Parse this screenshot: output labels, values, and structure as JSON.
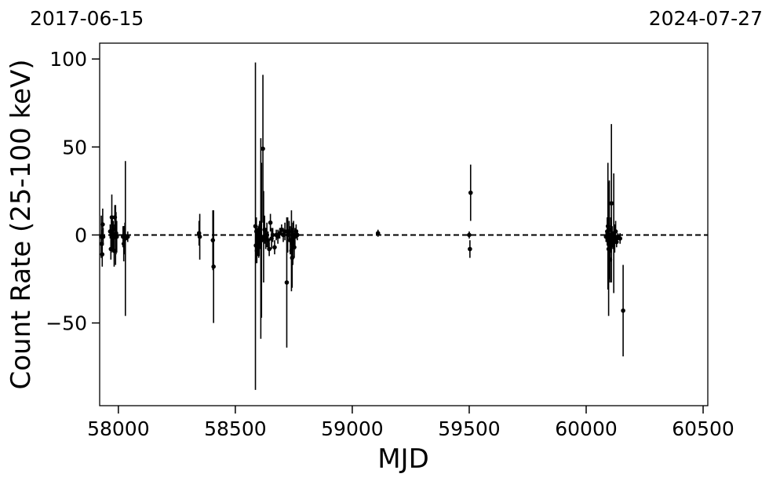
{
  "chart_data": {
    "type": "scatter",
    "title": "",
    "xlabel": "MJD",
    "ylabel": "Count Rate (25-100 keV)",
    "xlim": [
      57920,
      60520
    ],
    "ylim": [
      -97,
      109
    ],
    "x_ticks": [
      58000,
      58500,
      59000,
      59500,
      60000,
      60500
    ],
    "y_ticks": [
      -50,
      0,
      50,
      100
    ],
    "x_tick_labels": [
      "58000",
      "58500",
      "59000",
      "59500",
      "60000",
      "60500"
    ],
    "y_tick_labels": [
      "−50",
      "0",
      "50",
      "100"
    ],
    "top_dates": {
      "left": "2017-06-15",
      "right": "2024-07-27"
    },
    "reference_line": {
      "y": 0,
      "style": "dashed"
    },
    "grid": false,
    "marker_color": "#000000",
    "series": [
      {
        "points": [
          {
            "x": 57927,
            "y": -1,
            "err": 12
          },
          {
            "x": 57929,
            "y": -5,
            "err": 8
          },
          {
            "x": 57931,
            "y": -11,
            "err": 7
          },
          {
            "x": 57933,
            "y": 6,
            "err": 9
          },
          {
            "x": 57935,
            "y": -1,
            "err": 5
          },
          {
            "x": 57965,
            "y": 2,
            "err": 4
          },
          {
            "x": 57968,
            "y": -8,
            "err": 6
          },
          {
            "x": 57970,
            "y": 0,
            "err": 10
          },
          {
            "x": 57972,
            "y": 10,
            "err": 13
          },
          {
            "x": 57974,
            "y": 1,
            "err": 8
          },
          {
            "x": 57976,
            "y": -2,
            "err": 6
          },
          {
            "x": 57978,
            "y": 3,
            "err": 5
          },
          {
            "x": 57980,
            "y": -1,
            "err": 7
          },
          {
            "x": 57982,
            "y": -9,
            "err": 9
          },
          {
            "x": 57985,
            "y": 10,
            "err": 7
          },
          {
            "x": 57988,
            "y": 0,
            "err": 17
          },
          {
            "x": 57990,
            "y": 1,
            "err": 12
          },
          {
            "x": 57993,
            "y": -1,
            "err": 9
          },
          {
            "x": 58020,
            "y": -1,
            "err": 6
          },
          {
            "x": 58023,
            "y": -5,
            "err": 10
          },
          {
            "x": 58025,
            "y": 0,
            "err": 5
          },
          {
            "x": 58028,
            "y": -2,
            "err": 9
          },
          {
            "x": 58030,
            "y": -2,
            "err": 44
          },
          {
            "x": 58040,
            "y": -1,
            "err": 3
          },
          {
            "x": 58345,
            "y": 1,
            "err": 7
          },
          {
            "x": 58348,
            "y": -1,
            "err": 13
          },
          {
            "x": 58404,
            "y": -3,
            "err": 17
          },
          {
            "x": 58407,
            "y": -18,
            "err": 32
          },
          {
            "x": 58586,
            "y": 5,
            "err": 93
          },
          {
            "x": 58588,
            "y": -6,
            "err": 10
          },
          {
            "x": 58590,
            "y": 2,
            "err": 8
          },
          {
            "x": 58592,
            "y": -9,
            "err": 7
          },
          {
            "x": 58594,
            "y": -2,
            "err": 6
          },
          {
            "x": 58596,
            "y": -4,
            "err": 8
          },
          {
            "x": 58598,
            "y": 0,
            "err": 5
          },
          {
            "x": 58600,
            "y": -7,
            "err": 6
          },
          {
            "x": 58602,
            "y": -3,
            "err": 9
          },
          {
            "x": 58604,
            "y": 1,
            "err": 7
          },
          {
            "x": 58606,
            "y": -1,
            "err": 5
          },
          {
            "x": 58609,
            "y": -2,
            "err": 57
          },
          {
            "x": 58612,
            "y": -3,
            "err": 44
          },
          {
            "x": 58618,
            "y": 49,
            "err": 42
          },
          {
            "x": 58621,
            "y": -1,
            "err": 26
          },
          {
            "x": 58625,
            "y": 3,
            "err": 8
          },
          {
            "x": 58630,
            "y": -2,
            "err": 6
          },
          {
            "x": 58635,
            "y": 0,
            "err": 7
          },
          {
            "x": 58640,
            "y": -3,
            "err": 5
          },
          {
            "x": 58645,
            "y": -8,
            "err": 4
          },
          {
            "x": 58650,
            "y": 7,
            "err": 5
          },
          {
            "x": 58655,
            "y": -2,
            "err": 6
          },
          {
            "x": 58660,
            "y": 0,
            "err": 4
          },
          {
            "x": 58668,
            "y": -7,
            "err": 4
          },
          {
            "x": 58675,
            "y": 0,
            "err": 3
          },
          {
            "x": 58682,
            "y": -1,
            "err": 4
          },
          {
            "x": 58690,
            "y": 1,
            "err": 3
          },
          {
            "x": 58698,
            "y": 3,
            "err": 3
          },
          {
            "x": 58705,
            "y": 0,
            "err": 4
          },
          {
            "x": 58712,
            "y": 2,
            "err": 5
          },
          {
            "x": 58720,
            "y": -27,
            "err": 37
          },
          {
            "x": 58724,
            "y": 0,
            "err": 10
          },
          {
            "x": 58730,
            "y": 2,
            "err": 6
          },
          {
            "x": 58735,
            "y": -3,
            "err": 8
          },
          {
            "x": 58740,
            "y": -9,
            "err": 23
          },
          {
            "x": 58743,
            "y": -13,
            "err": 17
          },
          {
            "x": 58746,
            "y": -5,
            "err": 12
          },
          {
            "x": 58749,
            "y": 0,
            "err": 8
          },
          {
            "x": 58752,
            "y": -7,
            "err": 6
          },
          {
            "x": 58755,
            "y": -1,
            "err": 5
          },
          {
            "x": 58760,
            "y": 2,
            "err": 4
          },
          {
            "x": 58765,
            "y": 0,
            "err": 3
          },
          {
            "x": 59110,
            "y": 1,
            "err": 2
          },
          {
            "x": 59500,
            "y": 0,
            "err": 2
          },
          {
            "x": 59503,
            "y": -8,
            "err": 5
          },
          {
            "x": 59506,
            "y": 24,
            "err": 16
          },
          {
            "x": 60085,
            "y": -1,
            "err": 3
          },
          {
            "x": 60090,
            "y": 2,
            "err": 8
          },
          {
            "x": 60093,
            "y": 5,
            "err": 36
          },
          {
            "x": 60096,
            "y": -8,
            "err": 38
          },
          {
            "x": 60099,
            "y": 3,
            "err": 28
          },
          {
            "x": 60102,
            "y": -14,
            "err": 13
          },
          {
            "x": 60105,
            "y": 0,
            "err": 10
          },
          {
            "x": 60108,
            "y": 18,
            "err": 45
          },
          {
            "x": 60111,
            "y": -1,
            "err": 6
          },
          {
            "x": 60114,
            "y": -3,
            "err": 5
          },
          {
            "x": 60118,
            "y": 1,
            "err": 34
          },
          {
            "x": 60122,
            "y": -2,
            "err": 8
          },
          {
            "x": 60126,
            "y": 2,
            "err": 6
          },
          {
            "x": 60130,
            "y": -4,
            "err": 3
          },
          {
            "x": 60135,
            "y": -1,
            "err": 2
          },
          {
            "x": 60145,
            "y": -2,
            "err": 3
          },
          {
            "x": 60158,
            "y": -43,
            "err": 26
          }
        ]
      }
    ]
  }
}
